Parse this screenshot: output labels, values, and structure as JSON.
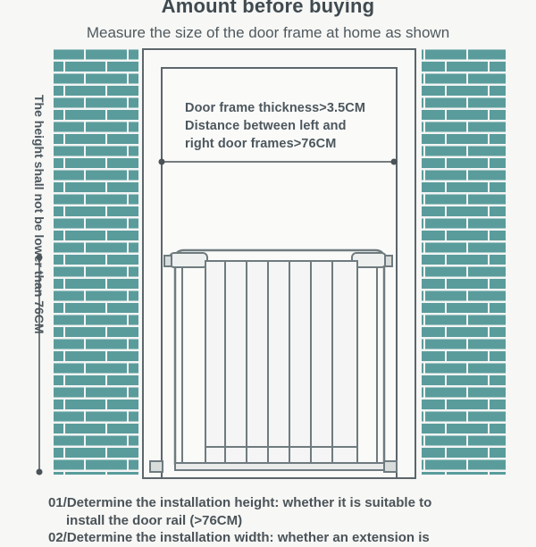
{
  "header": {
    "title": "Amount before buying",
    "subtitle": "Measure the size of the door frame at home as shown"
  },
  "door_frame": {
    "label_line1": "Door frame thickness>3.5CM",
    "label_line2": "Distance between left and",
    "label_line3": "right door frames>76CM"
  },
  "height_note": {
    "text": "The height shall not be lower than 76CM"
  },
  "steps": [
    {
      "line1": "01/Determine the installation height: whether it is suitable to",
      "line2": "install the door rail (>76CM)"
    },
    {
      "line1": "02/Determine the installation width: whether an extension is"
    }
  ],
  "colors": {
    "brick": "#5a9c9c",
    "brick_mortar": "#f2f5f4",
    "frame_line": "#4a5358",
    "gate": "#6f7b7f"
  }
}
